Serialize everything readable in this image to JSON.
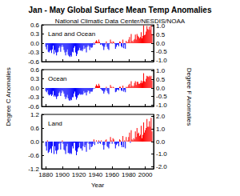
{
  "title": "Jan - May Global Surface Mean Temp Anomalies",
  "subtitle": "National Climatic Data Center/NESDIS/NOAA",
  "ylabel": "Degree C Anomalies",
  "y2label": "Degree F Anomalies",
  "chart_data": [
    {
      "type": "bar",
      "title": "Land and Ocean",
      "tick_labels": "y",
      "x": [
        1880,
        1881,
        1882,
        1883,
        1884,
        1885,
        1886,
        1887,
        1888,
        1889,
        1890,
        1891,
        1892,
        1893,
        1894,
        1895,
        1896,
        1897,
        1898,
        1899,
        1900,
        1901,
        1902,
        1903,
        1904,
        1905,
        1906,
        1907,
        1908,
        1909,
        1910,
        1911,
        1912,
        1913,
        1914,
        1915,
        1916,
        1917,
        1918,
        1919,
        1920,
        1921,
        1922,
        1923,
        1924,
        1925,
        1926,
        1927,
        1928,
        1929,
        1930,
        1931,
        1932,
        1933,
        1934,
        1935,
        1936,
        1937,
        1938,
        1939,
        1940,
        1941,
        1942,
        1943,
        1944,
        1945,
        1946,
        1947,
        1948,
        1949,
        1950,
        1951,
        1952,
        1953,
        1954,
        1955,
        1956,
        1957,
        1958,
        1959,
        1960,
        1961,
        1962,
        1963,
        1964,
        1965,
        1966,
        1967,
        1968,
        1969,
        1970,
        1971,
        1972,
        1973,
        1974,
        1975,
        1976,
        1977,
        1978,
        1979,
        1980,
        1981,
        1982,
        1983,
        1984,
        1985,
        1986,
        1987,
        1988,
        1989,
        1990,
        1991,
        1992,
        1993,
        1994,
        1995,
        1996,
        1997,
        1998,
        1999,
        2000,
        2001,
        2002,
        2003,
        2004,
        2005,
        2006,
        2007,
        2008
      ],
      "values": [
        -0.12,
        -0.2,
        -0.05,
        -0.28,
        -0.3,
        -0.25,
        -0.22,
        -0.32,
        -0.2,
        -0.08,
        -0.35,
        -0.22,
        -0.3,
        -0.4,
        -0.3,
        -0.28,
        -0.15,
        -0.1,
        -0.28,
        -0.12,
        -0.05,
        -0.12,
        -0.22,
        -0.3,
        -0.4,
        -0.28,
        -0.2,
        -0.38,
        -0.42,
        -0.45,
        -0.4,
        -0.44,
        -0.28,
        -0.3,
        -0.15,
        -0.1,
        -0.3,
        -0.42,
        -0.35,
        -0.25,
        -0.22,
        -0.15,
        -0.24,
        -0.22,
        -0.26,
        -0.2,
        -0.08,
        -0.18,
        -0.14,
        -0.3,
        -0.12,
        -0.06,
        -0.1,
        -0.22,
        -0.12,
        -0.15,
        -0.14,
        -0.06,
        0.02,
        -0.05,
        0.05,
        0.1,
        0.06,
        0.02,
        0.12,
        0.04,
        -0.05,
        -0.02,
        -0.06,
        -0.1,
        -0.22,
        -0.12,
        -0.04,
        0.06,
        -0.12,
        -0.18,
        -0.22,
        -0.02,
        0.12,
        0.04,
        -0.02,
        0.06,
        0.04,
        -0.02,
        -0.18,
        -0.12,
        -0.06,
        -0.04,
        -0.1,
        0.05,
        0.04,
        -0.1,
        -0.14,
        0.12,
        -0.16,
        -0.04,
        -0.18,
        0.08,
        0.02,
        0.04,
        0.12,
        0.2,
        0.02,
        0.3,
        0.08,
        0.04,
        0.1,
        0.14,
        0.28,
        0.12,
        0.3,
        0.24,
        0.2,
        0.16,
        0.2,
        0.36,
        0.16,
        0.24,
        0.58,
        0.26,
        0.28,
        0.38,
        0.56,
        0.46,
        0.44,
        0.54,
        0.44,
        0.58,
        0.3
      ],
      "colors": [
        "blue",
        "blue",
        "blue",
        "blue",
        "blue",
        "blue",
        "blue",
        "blue",
        "blue",
        "blue",
        "blue",
        "blue",
        "blue",
        "blue",
        "blue",
        "blue",
        "blue",
        "blue",
        "blue",
        "blue",
        "blue",
        "blue",
        "blue",
        "blue",
        "blue",
        "blue",
        "blue",
        "blue",
        "blue",
        "blue",
        "blue",
        "blue",
        "blue",
        "blue",
        "blue",
        "blue",
        "blue",
        "blue",
        "blue",
        "blue",
        "blue",
        "blue",
        "blue",
        "blue",
        "blue",
        "blue",
        "blue",
        "blue",
        "blue",
        "blue",
        "blue",
        "blue",
        "blue",
        "blue",
        "blue",
        "blue",
        "blue",
        "blue",
        "red",
        "blue",
        "red",
        "red",
        "red",
        "red",
        "red",
        "red",
        "blue",
        "blue",
        "blue",
        "blue",
        "blue",
        "blue",
        "blue",
        "red",
        "blue",
        "blue",
        "blue",
        "blue",
        "red",
        "red",
        "blue",
        "red",
        "red",
        "blue",
        "blue",
        "blue",
        "blue",
        "blue",
        "blue",
        "red",
        "red",
        "blue",
        "blue",
        "red",
        "blue",
        "blue",
        "blue",
        "red",
        "red",
        "red",
        "red",
        "red",
        "red",
        "red",
        "red",
        "red",
        "red",
        "red",
        "red",
        "red",
        "red",
        "red",
        "red",
        "red",
        "red",
        "red",
        "red",
        "red",
        "red",
        "red",
        "red",
        "red",
        "red",
        "red",
        "red",
        "red",
        "red",
        "red",
        "red"
      ],
      "xlim": [
        1875,
        2010
      ],
      "xticks": [
        1880,
        1900,
        1920,
        1940,
        1960,
        1980,
        2000
      ],
      "ylim": [
        -0.6,
        0.6
      ],
      "yticks": [
        -0.6,
        -0.3,
        {
          "value": 0,
          "label": "0.0"
        },
        0.3,
        0.6
      ],
      "y2lim": [
        -1.08,
        1.08
      ],
      "y2ticks": [
        {
          "value": -1,
          "label": "-1.0"
        },
        -0.5,
        {
          "value": 0,
          "label": "0.0"
        },
        0.5,
        {
          "value": 1,
          "label": "1.0"
        }
      ]
    },
    {
      "type": "bar",
      "title": "Ocean",
      "tick_labels": "y",
      "x": [
        1880,
        1881,
        1882,
        1883,
        1884,
        1885,
        1886,
        1887,
        1888,
        1889,
        1890,
        1891,
        1892,
        1893,
        1894,
        1895,
        1896,
        1897,
        1898,
        1899,
        1900,
        1901,
        1902,
        1903,
        1904,
        1905,
        1906,
        1907,
        1908,
        1909,
        1910,
        1911,
        1912,
        1913,
        1914,
        1915,
        1916,
        1917,
        1918,
        1919,
        1920,
        1921,
        1922,
        1923,
        1924,
        1925,
        1926,
        1927,
        1928,
        1929,
        1930,
        1931,
        1932,
        1933,
        1934,
        1935,
        1936,
        1937,
        1938,
        1939,
        1940,
        1941,
        1942,
        1943,
        1944,
        1945,
        1946,
        1947,
        1948,
        1949,
        1950,
        1951,
        1952,
        1953,
        1954,
        1955,
        1956,
        1957,
        1958,
        1959,
        1960,
        1961,
        1962,
        1963,
        1964,
        1965,
        1966,
        1967,
        1968,
        1969,
        1970,
        1971,
        1972,
        1973,
        1974,
        1975,
        1976,
        1977,
        1978,
        1979,
        1980,
        1981,
        1982,
        1983,
        1984,
        1985,
        1986,
        1987,
        1988,
        1989,
        1990,
        1991,
        1992,
        1993,
        1994,
        1995,
        1996,
        1997,
        1998,
        1999,
        2000,
        2001,
        2002,
        2003,
        2004,
        2005,
        2006,
        2007,
        2008
      ],
      "values": [
        -0.1,
        -0.14,
        -0.08,
        -0.2,
        -0.24,
        -0.22,
        -0.2,
        -0.26,
        -0.22,
        -0.1,
        -0.28,
        -0.24,
        -0.28,
        -0.36,
        -0.28,
        -0.26,
        -0.16,
        -0.12,
        -0.26,
        -0.16,
        -0.08,
        -0.12,
        -0.18,
        -0.28,
        -0.36,
        -0.3,
        -0.22,
        -0.34,
        -0.4,
        -0.42,
        -0.38,
        -0.4,
        -0.3,
        -0.3,
        -0.18,
        -0.12,
        -0.28,
        -0.38,
        -0.32,
        -0.24,
        -0.22,
        -0.18,
        -0.22,
        -0.2,
        -0.22,
        -0.2,
        -0.1,
        -0.16,
        -0.14,
        -0.24,
        -0.14,
        -0.08,
        -0.1,
        -0.18,
        -0.12,
        -0.12,
        -0.12,
        -0.04,
        0.0,
        -0.02,
        0.06,
        0.12,
        0.08,
        0.06,
        0.14,
        0.08,
        -0.02,
        -0.04,
        -0.08,
        -0.1,
        -0.18,
        -0.12,
        -0.06,
        0.04,
        -0.1,
        -0.16,
        -0.2,
        0.0,
        0.1,
        0.04,
        0.0,
        0.04,
        0.02,
        0.0,
        -0.14,
        -0.12,
        -0.06,
        -0.04,
        -0.08,
        0.04,
        0.04,
        -0.08,
        -0.1,
        0.08,
        -0.12,
        -0.06,
        -0.14,
        0.04,
        0.02,
        0.04,
        0.1,
        0.14,
        0.04,
        0.22,
        0.08,
        0.04,
        0.08,
        0.16,
        0.22,
        0.1,
        0.2,
        0.2,
        0.14,
        0.14,
        0.16,
        0.24,
        0.16,
        0.22,
        0.48,
        0.22,
        0.2,
        0.3,
        0.4,
        0.38,
        0.36,
        0.4,
        0.36,
        0.4,
        0.24
      ],
      "colors": [
        "blue",
        "blue",
        "blue",
        "blue",
        "blue",
        "blue",
        "blue",
        "blue",
        "blue",
        "blue",
        "blue",
        "blue",
        "blue",
        "blue",
        "blue",
        "blue",
        "blue",
        "blue",
        "blue",
        "blue",
        "blue",
        "blue",
        "blue",
        "blue",
        "blue",
        "blue",
        "blue",
        "blue",
        "blue",
        "blue",
        "blue",
        "blue",
        "blue",
        "blue",
        "blue",
        "blue",
        "blue",
        "blue",
        "blue",
        "blue",
        "blue",
        "blue",
        "blue",
        "blue",
        "blue",
        "blue",
        "blue",
        "blue",
        "blue",
        "blue",
        "blue",
        "blue",
        "blue",
        "blue",
        "blue",
        "blue",
        "blue",
        "blue",
        "blue",
        "blue",
        "red",
        "red",
        "red",
        "red",
        "red",
        "red",
        "blue",
        "blue",
        "blue",
        "blue",
        "blue",
        "blue",
        "blue",
        "red",
        "blue",
        "blue",
        "blue",
        "blue",
        "red",
        "red",
        "blue",
        "red",
        "red",
        "blue",
        "blue",
        "blue",
        "blue",
        "blue",
        "blue",
        "red",
        "red",
        "blue",
        "blue",
        "red",
        "blue",
        "blue",
        "blue",
        "red",
        "red",
        "red",
        "red",
        "red",
        "red",
        "red",
        "red",
        "red",
        "red",
        "red",
        "red",
        "red",
        "red",
        "red",
        "red",
        "red",
        "red",
        "red",
        "red",
        "red",
        "red",
        "red",
        "red",
        "red",
        "red",
        "red",
        "red",
        "red",
        "red",
        "red",
        "red"
      ],
      "xlim": [
        1875,
        2010
      ],
      "xticks": [
        1880,
        1900,
        1920,
        1940,
        1960,
        1980,
        2000
      ],
      "ylim": [
        -0.6,
        0.6
      ],
      "yticks": [
        -0.6,
        -0.3,
        {
          "value": 0,
          "label": "0.0"
        },
        0.3,
        0.6
      ],
      "y2lim": [
        -1.08,
        1.08
      ],
      "y2ticks": [
        {
          "value": -1,
          "label": "-1.0"
        },
        -0.5,
        {
          "value": 0,
          "label": "0.0"
        },
        0.5,
        {
          "value": 1,
          "label": "1.0"
        }
      ]
    },
    {
      "type": "bar",
      "title": "Land",
      "xlabel": "Year",
      "x": [
        1880,
        1881,
        1882,
        1883,
        1884,
        1885,
        1886,
        1887,
        1888,
        1889,
        1890,
        1891,
        1892,
        1893,
        1894,
        1895,
        1896,
        1897,
        1898,
        1899,
        1900,
        1901,
        1902,
        1903,
        1904,
        1905,
        1906,
        1907,
        1908,
        1909,
        1910,
        1911,
        1912,
        1913,
        1914,
        1915,
        1916,
        1917,
        1918,
        1919,
        1920,
        1921,
        1922,
        1923,
        1924,
        1925,
        1926,
        1927,
        1928,
        1929,
        1930,
        1931,
        1932,
        1933,
        1934,
        1935,
        1936,
        1937,
        1938,
        1939,
        1940,
        1941,
        1942,
        1943,
        1944,
        1945,
        1946,
        1947,
        1948,
        1949,
        1950,
        1951,
        1952,
        1953,
        1954,
        1955,
        1956,
        1957,
        1958,
        1959,
        1960,
        1961,
        1962,
        1963,
        1964,
        1965,
        1966,
        1967,
        1968,
        1969,
        1970,
        1971,
        1972,
        1973,
        1974,
        1975,
        1976,
        1977,
        1978,
        1979,
        1980,
        1981,
        1982,
        1983,
        1984,
        1985,
        1986,
        1987,
        1988,
        1989,
        1990,
        1991,
        1992,
        1993,
        1994,
        1995,
        1996,
        1997,
        1998,
        1999,
        2000,
        2001,
        2002,
        2003,
        2004,
        2005,
        2006,
        2007,
        2008
      ],
      "values": [
        -0.2,
        -0.4,
        0.05,
        -0.5,
        -0.45,
        -0.35,
        -0.3,
        -0.5,
        -0.2,
        0.0,
        -0.55,
        -0.2,
        -0.4,
        -0.55,
        -0.4,
        -0.35,
        -0.1,
        -0.05,
        -0.35,
        -0.05,
        0.05,
        -0.1,
        -0.35,
        -0.4,
        -0.55,
        -0.2,
        -0.1,
        -0.5,
        -0.5,
        -0.55,
        -0.5,
        -0.55,
        -0.2,
        -0.3,
        -0.05,
        -0.05,
        -0.4,
        -0.6,
        -0.45,
        -0.3,
        -0.25,
        -0.05,
        -0.3,
        -0.3,
        -0.4,
        -0.2,
        0.0,
        -0.25,
        -0.15,
        -0.45,
        -0.05,
        0.0,
        -0.1,
        -0.35,
        -0.1,
        -0.25,
        -0.2,
        -0.1,
        0.1,
        -0.15,
        0.0,
        0.05,
        0.0,
        -0.1,
        0.05,
        -0.05,
        -0.1,
        0.05,
        0.0,
        -0.15,
        -0.35,
        -0.15,
        0.05,
        0.1,
        -0.2,
        -0.25,
        -0.3,
        -0.1,
        0.2,
        0.05,
        -0.1,
        0.15,
        0.1,
        -0.1,
        -0.3,
        -0.15,
        -0.1,
        -0.05,
        -0.2,
        0.1,
        0.05,
        -0.15,
        -0.25,
        0.25,
        -0.25,
        0.05,
        -0.3,
        0.2,
        0.0,
        0.05,
        0.2,
        0.4,
        -0.05,
        0.5,
        0.1,
        0.05,
        0.15,
        0.1,
        0.45,
        0.2,
        0.6,
        0.35,
        0.4,
        0.25,
        0.3,
        0.7,
        0.15,
        0.3,
        0.85,
        0.4,
        0.5,
        0.6,
        1.0,
        0.65,
        0.65,
        0.9,
        0.65,
        1.05,
        0.45
      ],
      "colors": [
        "blue",
        "blue",
        "red",
        "blue",
        "blue",
        "blue",
        "blue",
        "blue",
        "blue",
        "blue",
        "blue",
        "blue",
        "blue",
        "blue",
        "blue",
        "blue",
        "blue",
        "blue",
        "blue",
        "blue",
        "red",
        "blue",
        "blue",
        "blue",
        "blue",
        "blue",
        "blue",
        "blue",
        "blue",
        "blue",
        "blue",
        "blue",
        "blue",
        "blue",
        "blue",
        "blue",
        "blue",
        "blue",
        "blue",
        "blue",
        "blue",
        "blue",
        "blue",
        "blue",
        "blue",
        "blue",
        "blue",
        "blue",
        "blue",
        "blue",
        "blue",
        "blue",
        "blue",
        "blue",
        "blue",
        "blue",
        "blue",
        "blue",
        "red",
        "blue",
        "blue",
        "red",
        "blue",
        "blue",
        "red",
        "blue",
        "blue",
        "red",
        "blue",
        "blue",
        "blue",
        "blue",
        "red",
        "red",
        "blue",
        "blue",
        "blue",
        "blue",
        "red",
        "red",
        "blue",
        "red",
        "red",
        "blue",
        "blue",
        "blue",
        "blue",
        "blue",
        "blue",
        "red",
        "red",
        "blue",
        "blue",
        "red",
        "blue",
        "red",
        "blue",
        "red",
        "blue",
        "red",
        "red",
        "red",
        "blue",
        "red",
        "red",
        "red",
        "red",
        "red",
        "red",
        "red",
        "red",
        "red",
        "red",
        "red",
        "red",
        "red",
        "red",
        "red",
        "red",
        "red",
        "red",
        "red",
        "red",
        "red",
        "red",
        "red",
        "red",
        "red",
        "red"
      ],
      "xlim": [
        1875,
        2010
      ],
      "xticks": [
        1880,
        1900,
        1920,
        1940,
        1960,
        1980,
        2000
      ],
      "ylim": [
        -1.2,
        1.2
      ],
      "yticks": [
        -1.2,
        -0.6,
        {
          "value": 0,
          "label": "0.0"
        },
        0.6,
        1.2
      ],
      "y2lim": [
        -2.16,
        2.16
      ],
      "y2ticks": [
        {
          "value": -2,
          "label": "-2.0"
        },
        {
          "value": -1,
          "label": "-1.0"
        },
        {
          "value": 0,
          "label": "0.0"
        },
        {
          "value": 1,
          "label": "1.0"
        },
        {
          "value": 2,
          "label": "2.0"
        }
      ]
    }
  ]
}
